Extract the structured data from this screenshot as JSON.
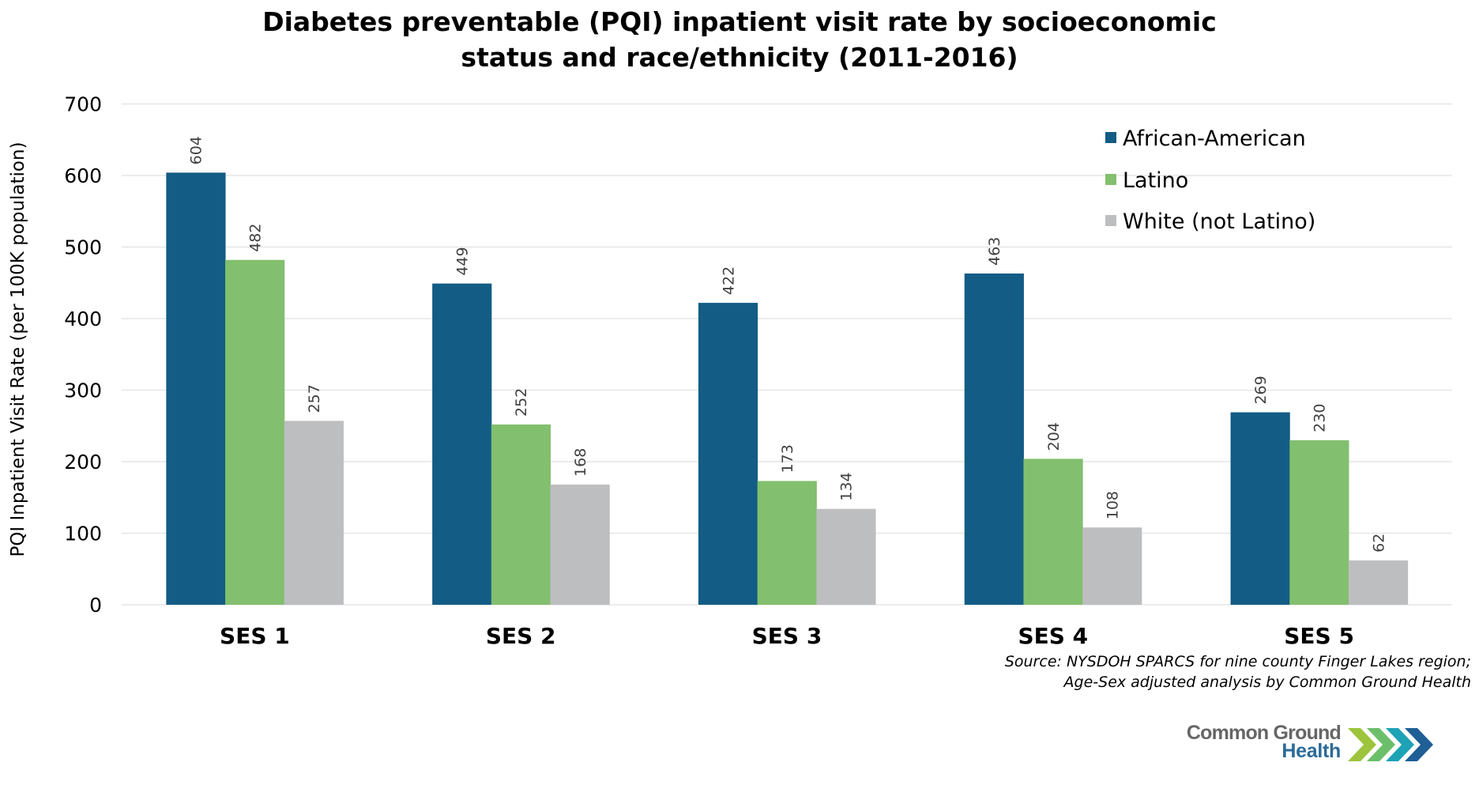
{
  "chart_data": {
    "type": "bar",
    "title": "Diabetes preventable (PQI) inpatient visit rate by socioeconomic status and race/ethnicity (2011-2016)",
    "title_lines": [
      "Diabetes preventable (PQI) inpatient visit rate by socioeconomic",
      "status and race/ethnicity (2011-2016)"
    ],
    "xlabel": "",
    "ylabel": "PQI Inpatient Visit Rate (per 100K population)",
    "categories": [
      "SES 1",
      "SES 2",
      "SES 3",
      "SES 4",
      "SES 5"
    ],
    "series": [
      {
        "name": "African-American",
        "color": "#135c85",
        "values": [
          604,
          449,
          422,
          463,
          269
        ]
      },
      {
        "name": "Latino",
        "color": "#82bf6e",
        "values": [
          482,
          252,
          173,
          204,
          230
        ]
      },
      {
        "name": "White (not Latino)",
        "color": "#bdbec0",
        "values": [
          257,
          168,
          134,
          108,
          62
        ]
      }
    ],
    "ylim": [
      0,
      700
    ],
    "yticks": [
      0,
      100,
      200,
      300,
      400,
      500,
      600,
      700
    ],
    "grid": true,
    "legend_position": "top-right",
    "data_labels": true,
    "data_label_color": "#404040",
    "gridline_color": "#e6e6e6"
  },
  "source": {
    "line1": "Source: NYSDOH SPARCS for nine county Finger Lakes region;",
    "line2": "Age-Sex adjusted analysis by Common Ground Health"
  },
  "logo": {
    "line1": "Common Ground",
    "line2": "Health",
    "chevron_colors": [
      "#9dc43c",
      "#6cbf6a",
      "#1ea2b6",
      "#1e5f96"
    ]
  }
}
